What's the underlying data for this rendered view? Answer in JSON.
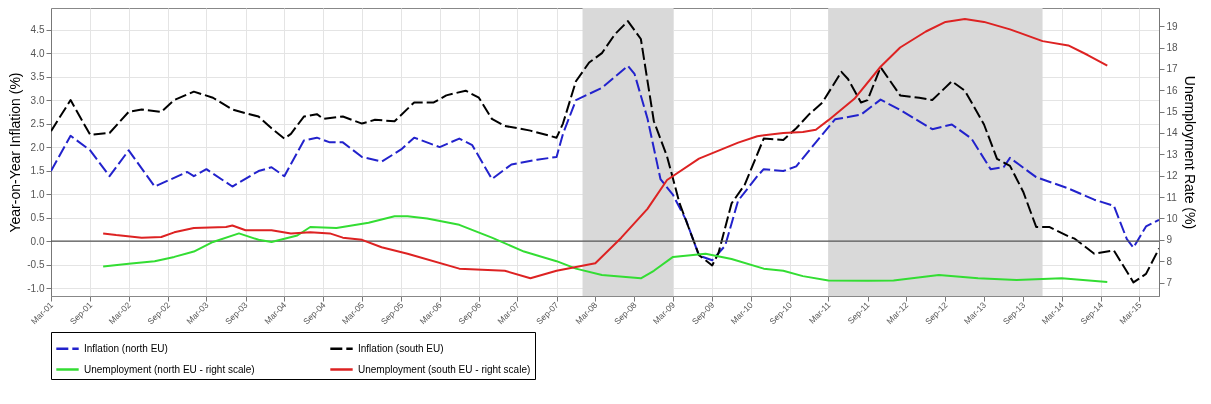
{
  "chart_data": {
    "type": "line",
    "ylabel": "Year-on-Year Inflation (%)",
    "y2label": "Unemployment Rate (%)",
    "xlim": [
      "2001-03",
      "2015-06"
    ],
    "xticks": [
      {
        "value": "2001-03",
        "label": "Mar-01"
      },
      {
        "value": "2001-09",
        "label": "Sep-01"
      },
      {
        "value": "2002-03",
        "label": "Mar-02"
      },
      {
        "value": "2002-09",
        "label": "Sep-02"
      },
      {
        "value": "2003-03",
        "label": "Mar-03"
      },
      {
        "value": "2003-09",
        "label": "Sep-03"
      },
      {
        "value": "2004-03",
        "label": "Mar-04"
      },
      {
        "value": "2004-09",
        "label": "Sep-04"
      },
      {
        "value": "2005-03",
        "label": "Mar-05"
      },
      {
        "value": "2005-09",
        "label": "Sep-05"
      },
      {
        "value": "2006-03",
        "label": "Mar-06"
      },
      {
        "value": "2006-09",
        "label": "Sep-06"
      },
      {
        "value": "2007-03",
        "label": "Mar-07"
      },
      {
        "value": "2007-09",
        "label": "Sep-07"
      },
      {
        "value": "2008-03",
        "label": "Mar-08"
      },
      {
        "value": "2008-09",
        "label": "Sep-08"
      },
      {
        "value": "2009-03",
        "label": "Mar-09"
      },
      {
        "value": "2009-09",
        "label": "Sep-09"
      },
      {
        "value": "2010-03",
        "label": "Mar-10"
      },
      {
        "value": "2010-09",
        "label": "Sep-10"
      },
      {
        "value": "2011-03",
        "label": "Mar-11"
      },
      {
        "value": "2011-09",
        "label": "Sep-11"
      },
      {
        "value": "2012-03",
        "label": "Mar-12"
      },
      {
        "value": "2012-09",
        "label": "Sep-12"
      },
      {
        "value": "2013-03",
        "label": "Mar-13"
      },
      {
        "value": "2013-09",
        "label": "Sep-13"
      },
      {
        "value": "2014-03",
        "label": "Mar-14"
      },
      {
        "value": "2014-09",
        "label": "Sep-14"
      },
      {
        "value": "2015-03",
        "label": "Mar-15"
      }
    ],
    "ylim": [
      -1.17,
      4.96
    ],
    "yticks": [
      {
        "value": -1,
        "label": "-1.0"
      },
      -0.5,
      {
        "value": 0,
        "label": "0.0"
      },
      0.5,
      {
        "value": 1,
        "label": "1.0"
      },
      1.5,
      {
        "value": 2,
        "label": "2.0"
      },
      2.5,
      {
        "value": 3,
        "label": "3.0"
      },
      3.5,
      {
        "value": 4,
        "label": "4.0"
      },
      4.5
    ],
    "y2lim": [
      6.37,
      19.85
    ],
    "y2ticks": [
      7,
      8,
      9,
      10,
      11,
      12,
      13,
      14,
      15,
      16,
      17,
      18,
      19
    ],
    "grid": true,
    "legend": "bottom",
    "marker": "none",
    "bands": [
      {
        "axis": "x",
        "from": "2008-01",
        "to": "2009-03",
        "color": "#d9d9d9"
      },
      {
        "axis": "x",
        "from": "2011-03",
        "to": "2013-12",
        "color": "#d9d9d9"
      }
    ],
    "ref_lines": [
      {
        "axis": "y",
        "value": 0,
        "color": "#555555"
      }
    ],
    "series": [
      {
        "name": "Inflation (north EU)",
        "color": "#2222cc",
        "line_style": "dashed",
        "x": [
          "2001-03",
          "2001-06",
          "2001-09",
          "2001-12",
          "2002-03",
          "2002-07",
          "2002-12",
          "2003-01",
          "2003-03",
          "2003-07",
          "2003-11",
          "2004-01",
          "2004-03",
          "2004-06",
          "2004-08",
          "2004-10",
          "2004-12",
          "2005-03",
          "2005-06",
          "2005-09",
          "2005-11",
          "2006-03",
          "2006-06",
          "2006-08",
          "2006-11",
          "2007-02",
          "2007-06",
          "2007-09",
          "2007-10",
          "2007-12",
          "2008-04",
          "2008-08",
          "2008-09",
          "2008-11",
          "2009-01",
          "2009-03",
          "2009-05",
          "2009-07",
          "2009-09",
          "2009-11",
          "2010-01",
          "2010-04",
          "2010-05",
          "2010-08",
          "2010-10",
          "2011-01",
          "2011-04",
          "2011-08",
          "2011-11",
          "2012-02",
          "2012-07",
          "2012-10",
          "2013-01",
          "2013-04",
          "2013-06",
          "2013-07",
          "2013-11",
          "2014-04",
          "2014-08",
          "2014-11",
          "2015-01",
          "2015-02",
          "2015-04",
          "2015-06"
        ],
        "values": [
          1.49,
          2.24,
          1.93,
          1.38,
          1.93,
          1.16,
          1.47,
          1.38,
          1.53,
          1.16,
          1.49,
          1.57,
          1.38,
          2.14,
          2.2,
          2.1,
          2.1,
          1.79,
          1.69,
          1.95,
          2.2,
          2.0,
          2.18,
          2.04,
          1.32,
          1.63,
          1.73,
          1.79,
          2.28,
          3.0,
          3.26,
          3.73,
          3.56,
          2.61,
          1.32,
          0.98,
          0.45,
          -0.31,
          -0.41,
          -0.1,
          0.86,
          1.38,
          1.53,
          1.49,
          1.59,
          2.1,
          2.59,
          2.69,
          3.01,
          2.79,
          2.38,
          2.48,
          2.18,
          1.53,
          1.57,
          1.77,
          1.36,
          1.12,
          0.88,
          0.75,
          0.04,
          -0.14,
          0.31,
          0.45
        ]
      },
      {
        "name": "Inflation (south EU)",
        "color": "#000000",
        "line_style": "dashed",
        "x": [
          "2001-03",
          "2001-06",
          "2001-09",
          "2001-12",
          "2002-03",
          "2002-05",
          "2002-08",
          "2002-10",
          "2003-01",
          "2003-04",
          "2003-07",
          "2003-09",
          "2003-11",
          "2004-01",
          "2004-03",
          "2004-04",
          "2004-06",
          "2004-08",
          "2004-09",
          "2004-12",
          "2005-03",
          "2005-05",
          "2005-08",
          "2005-11",
          "2006-02",
          "2006-04",
          "2006-07",
          "2006-09",
          "2006-11",
          "2007-01",
          "2007-05",
          "2007-09",
          "2007-10",
          "2007-12",
          "2008-02",
          "2008-04",
          "2008-06",
          "2008-08",
          "2008-10",
          "2008-12",
          "2009-02",
          "2009-04",
          "2009-07",
          "2009-09",
          "2009-10",
          "2009-12",
          "2010-02",
          "2010-05",
          "2010-08",
          "2010-10",
          "2010-12",
          "2011-02",
          "2011-05",
          "2011-06",
          "2011-08",
          "2011-09",
          "2011-11",
          "2012-02",
          "2012-05",
          "2012-07",
          "2012-10",
          "2012-12",
          "2013-03",
          "2013-05",
          "2013-07",
          "2013-09",
          "2013-11",
          "2014-01",
          "2014-04",
          "2014-05",
          "2014-08",
          "2014-11",
          "2015-02",
          "2015-04",
          "2015-06"
        ],
        "values": [
          2.34,
          3.0,
          2.26,
          2.3,
          2.75,
          2.8,
          2.75,
          3.0,
          3.18,
          3.05,
          2.8,
          2.72,
          2.65,
          2.4,
          2.18,
          2.28,
          2.65,
          2.7,
          2.6,
          2.65,
          2.5,
          2.58,
          2.55,
          2.95,
          2.95,
          3.1,
          3.2,
          3.05,
          2.6,
          2.45,
          2.35,
          2.2,
          2.5,
          3.4,
          3.8,
          4.0,
          4.4,
          4.68,
          4.3,
          2.55,
          1.8,
          0.8,
          -0.3,
          -0.52,
          -0.25,
          0.8,
          1.2,
          2.18,
          2.15,
          2.4,
          2.7,
          2.95,
          3.6,
          3.45,
          2.95,
          3.0,
          3.7,
          3.1,
          3.05,
          3.0,
          3.4,
          3.2,
          2.48,
          1.75,
          1.6,
          1.05,
          0.3,
          0.3,
          0.1,
          0.05,
          -0.27,
          -0.2,
          -0.88,
          -0.7,
          -0.16
        ]
      },
      {
        "name": "Unemployment (north EU - right scale)",
        "color": "#33dd33",
        "line_style": "solid",
        "axis": "y2",
        "x": [
          "2001-11",
          "2002-03",
          "2002-07",
          "2002-10",
          "2003-01",
          "2003-04",
          "2003-08",
          "2003-11",
          "2004-01",
          "2004-05",
          "2004-07",
          "2004-11",
          "2005-04",
          "2005-08",
          "2005-10",
          "2006-01",
          "2006-06",
          "2006-11",
          "2007-04",
          "2007-09",
          "2007-12",
          "2008-04",
          "2008-10",
          "2008-12",
          "2009-03",
          "2009-08",
          "2009-12",
          "2010-05",
          "2010-08",
          "2010-11",
          "2011-03",
          "2011-09",
          "2012-01",
          "2012-08",
          "2013-02",
          "2013-08",
          "2014-03",
          "2014-10"
        ],
        "values": [
          7.75,
          7.88,
          8.0,
          8.2,
          8.45,
          8.9,
          9.3,
          9.0,
          8.9,
          9.2,
          9.6,
          9.55,
          9.8,
          10.1,
          10.1,
          10.0,
          9.7,
          9.1,
          8.45,
          8.0,
          7.65,
          7.35,
          7.2,
          7.55,
          8.2,
          8.35,
          8.1,
          7.65,
          7.55,
          7.3,
          7.1,
          7.08,
          7.1,
          7.35,
          7.2,
          7.12,
          7.2,
          7.03
        ]
      },
      {
        "name": "Unemployment (south EU - right scale)",
        "color": "#dd2222",
        "line_style": "solid",
        "axis": "y2",
        "x": [
          "2001-11",
          "2002-01",
          "2002-05",
          "2002-08",
          "2002-10",
          "2003-01",
          "2003-06",
          "2003-07",
          "2003-09",
          "2004-01",
          "2004-04",
          "2004-07",
          "2004-10",
          "2004-12",
          "2005-03",
          "2005-06",
          "2005-10",
          "2006-06",
          "2007-01",
          "2007-05",
          "2007-09",
          "2008-03",
          "2008-07",
          "2008-11",
          "2009-02",
          "2009-07",
          "2010-01",
          "2010-04",
          "2010-08",
          "2010-11",
          "2011-01",
          "2011-03",
          "2011-07",
          "2011-11",
          "2012-02",
          "2012-06",
          "2012-09",
          "2012-12",
          "2013-03",
          "2013-07",
          "2013-12",
          "2014-04",
          "2014-07",
          "2014-10"
        ],
        "values": [
          9.3,
          9.22,
          9.1,
          9.13,
          9.35,
          9.55,
          9.6,
          9.67,
          9.45,
          9.45,
          9.3,
          9.35,
          9.3,
          9.1,
          9.0,
          8.65,
          8.35,
          7.65,
          7.55,
          7.2,
          7.55,
          7.9,
          9.1,
          10.45,
          11.8,
          12.8,
          13.55,
          13.85,
          14.0,
          14.05,
          14.15,
          14.6,
          15.6,
          17.1,
          18.0,
          18.75,
          19.2,
          19.33,
          19.2,
          18.85,
          18.3,
          18.1,
          17.65,
          17.15
        ]
      }
    ]
  }
}
